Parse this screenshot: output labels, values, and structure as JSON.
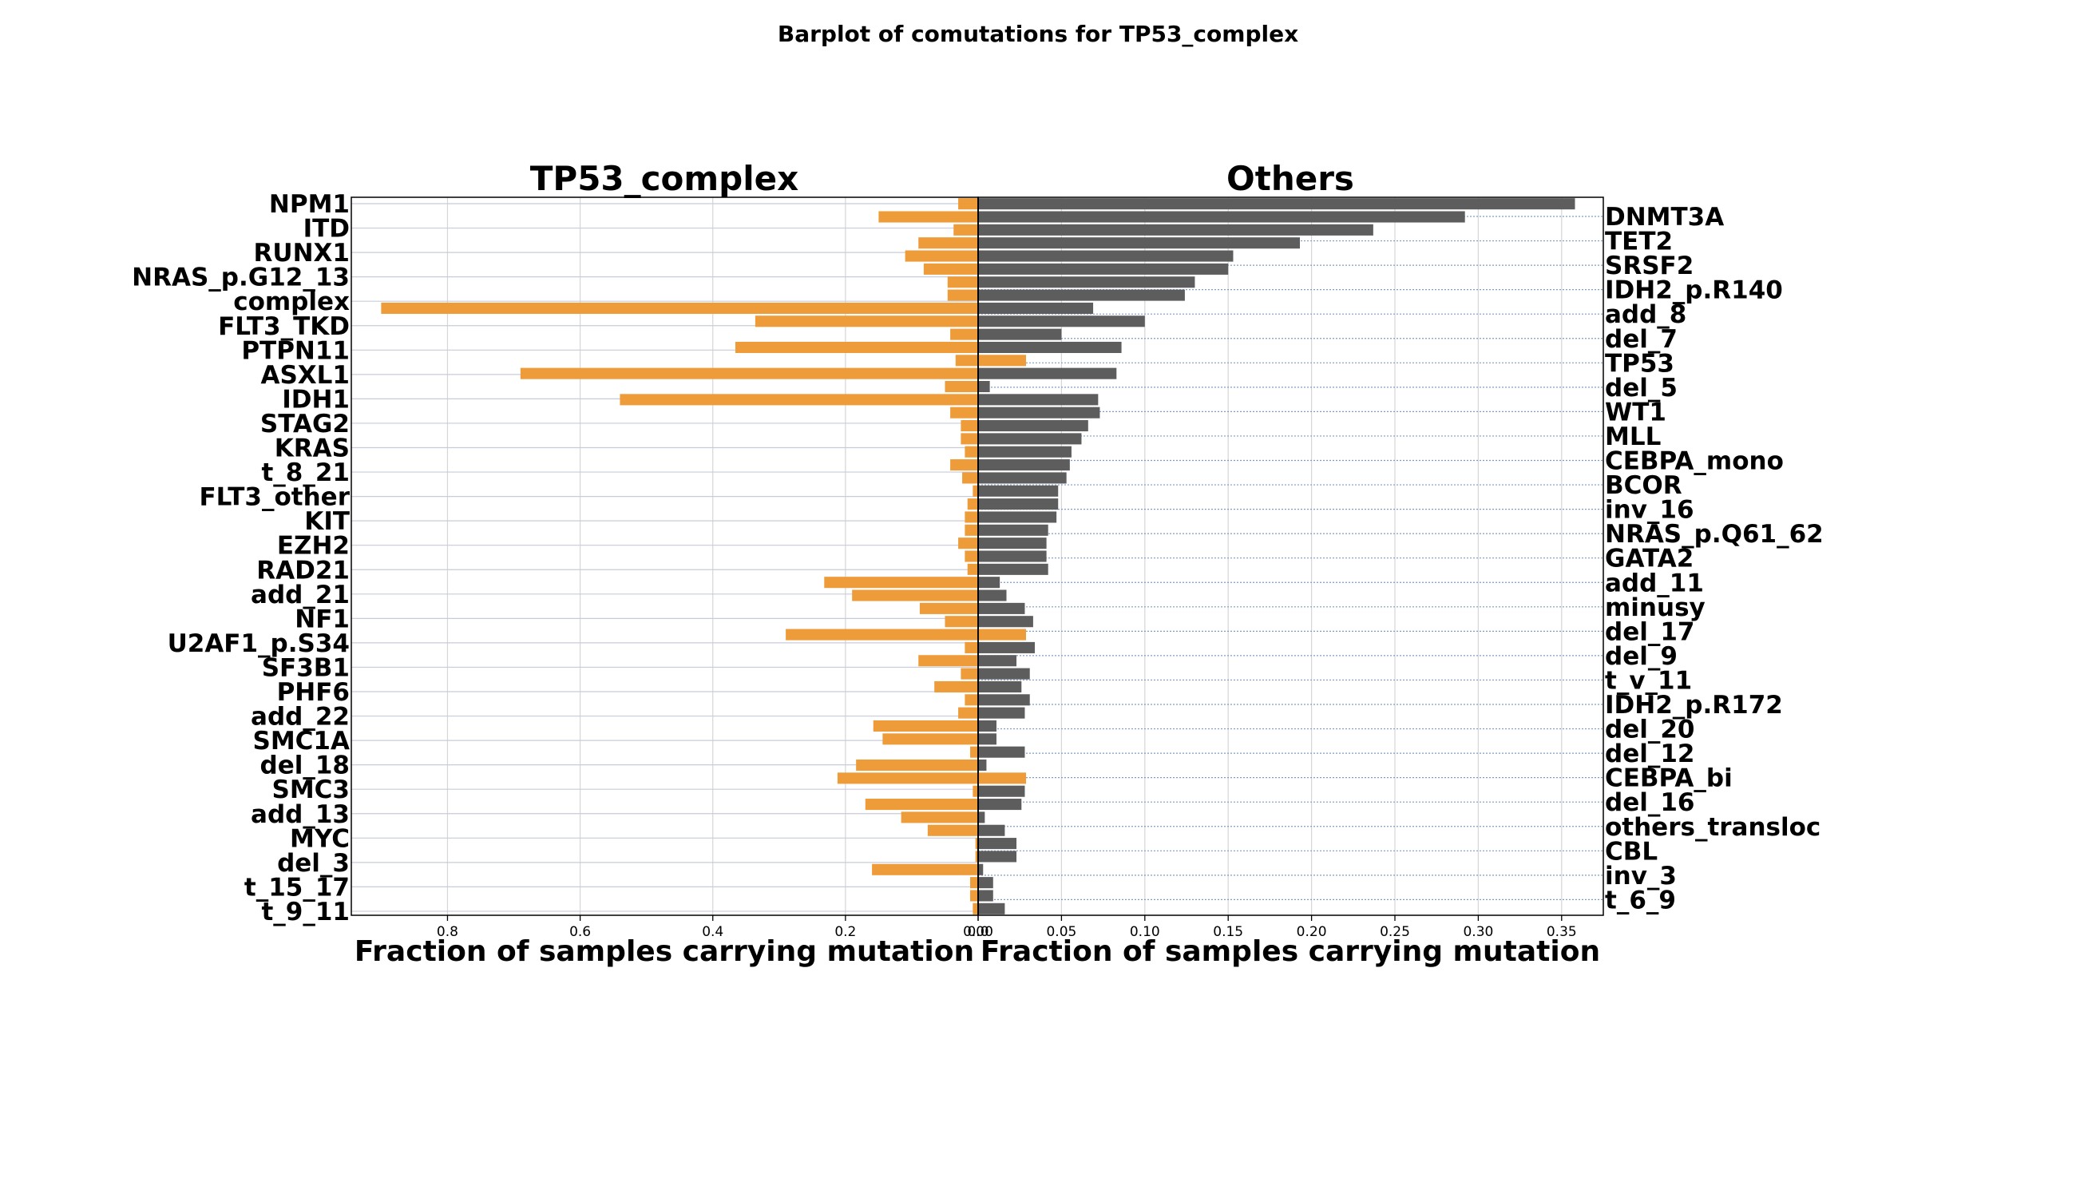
{
  "chart_data": {
    "type": "bar",
    "orientation": "horizontal",
    "title": "Barplot  of comutations for TP53_complex",
    "colors": {
      "tp53_complex": "#ee9b3a",
      "others": "#5d5d5d"
    },
    "grid": true,
    "panels": [
      {
        "title": "TP53_complex",
        "xlabel": "Fraction of samples carrying mutation",
        "xlim": [
          0.945,
          0.0
        ],
        "xticks": [
          "0.8",
          "0.6",
          "0.4",
          "0.2",
          "0.0"
        ],
        "xtick_values": [
          0.8,
          0.6,
          0.4,
          0.2,
          0.0
        ],
        "label_side": "left"
      },
      {
        "title": "Others",
        "xlabel": "Fraction of samples carrying mutation",
        "xlim": [
          0.0,
          0.375
        ],
        "xticks": [
          "0.00",
          "0.05",
          "0.10",
          "0.15",
          "0.20",
          "0.25",
          "0.30",
          "0.35"
        ],
        "xtick_values": [
          0.0,
          0.05,
          0.1,
          0.15,
          0.2,
          0.25,
          0.3,
          0.35
        ],
        "label_side": "right"
      }
    ],
    "left_labels": [
      "NPM1",
      "ITD",
      "RUNX1",
      "NRAS_p.G12_13",
      "complex",
      "FLT3_TKD",
      "PTPN11",
      "ASXL1",
      "IDH1",
      "STAG2",
      "KRAS",
      "t_8_21",
      "FLT3_other",
      "KIT",
      "EZH2",
      "RAD21",
      "add_21",
      "NF1",
      "U2AF1_p.S34",
      "SF3B1",
      "PHF6",
      "add_22",
      "SMC1A",
      "del_18",
      "SMC3",
      "add_13",
      "MYC",
      "del_3",
      "t_15_17",
      "t_9_11"
    ],
    "right_labels": [
      "DNMT3A",
      "TET2",
      "SRSF2",
      "IDH2_p.R140",
      "add_8",
      "del_7",
      "TP53",
      "del_5",
      "WT1",
      "MLL",
      "CEBPA_mono",
      "BCOR",
      "inv_16",
      "NRAS_p.Q61_62",
      "GATA2",
      "add_11",
      "minusy",
      "del_17",
      "del_9",
      "t_v_11",
      "IDH2_p.R172",
      "del_20",
      "del_12",
      "CEBPA_bi",
      "del_16",
      "others_transloc",
      "CBL",
      "inv_3",
      "t_6_9"
    ],
    "series": [
      {
        "name": "TP53_complex",
        "values": [
          0.03,
          0.15,
          0.037,
          0.09,
          0.11,
          0.082,
          0.046,
          0.046,
          0.9,
          0.336,
          0.042,
          0.366,
          0.034,
          0.69,
          0.05,
          0.54,
          0.042,
          0.026,
          0.026,
          0.02,
          0.042,
          0.024,
          0.008,
          0.016,
          0.02,
          0.02,
          0.03,
          0.02,
          0.016,
          0.232,
          0.19,
          0.088,
          0.05,
          0.29,
          0.02,
          0.09,
          0.026,
          0.066,
          0.02,
          0.03,
          0.158,
          0.144,
          0.012,
          0.184,
          0.212,
          0.008,
          0.17,
          0.116,
          0.076,
          0.004,
          0.004,
          0.16,
          0.012,
          0.012,
          0.008
        ]
      },
      {
        "name": "Others",
        "values": [
          0.358,
          0.292,
          0.237,
          0.193,
          0.153,
          0.15,
          0.13,
          0.124,
          0.069,
          0.1,
          0.05,
          0.086,
          0.0,
          0.083,
          0.007,
          0.072,
          0.073,
          0.066,
          0.062,
          0.056,
          0.055,
          0.053,
          0.048,
          0.048,
          0.047,
          0.042,
          0.041,
          0.041,
          0.042,
          0.013,
          0.017,
          0.028,
          0.033,
          0.0,
          0.034,
          0.023,
          0.031,
          0.026,
          0.031,
          0.028,
          0.011,
          0.011,
          0.028,
          0.005,
          0.0,
          0.028,
          0.026,
          0.004,
          0.016,
          0.023,
          0.023,
          0.003,
          0.009,
          0.009,
          0.016
        ]
      }
    ]
  }
}
